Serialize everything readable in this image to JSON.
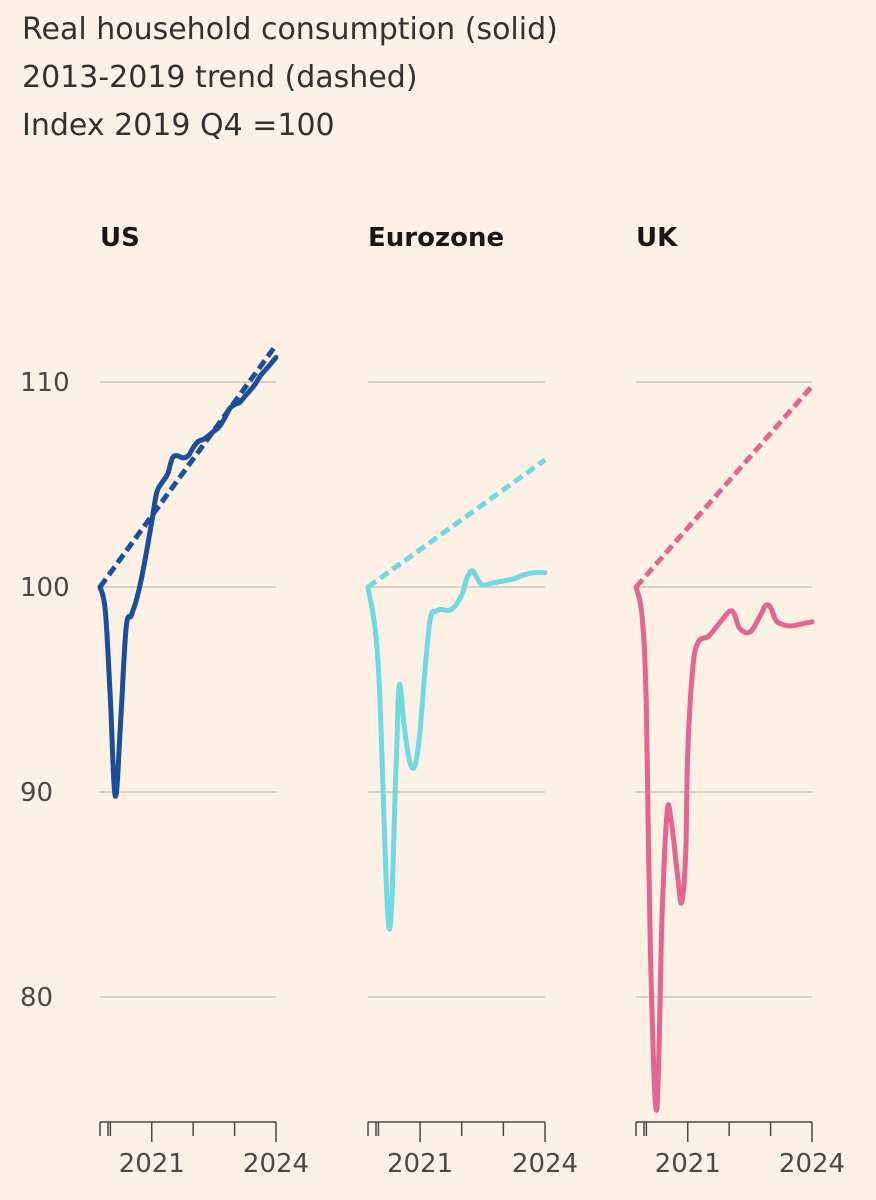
{
  "title_lines": [
    "Real household consumption (solid)",
    "2013-2019 trend (dashed)",
    "Index 2019 Q4 =100"
  ],
  "chart_data": [
    {
      "type": "line",
      "title": "US",
      "color": "#1b4f9b",
      "ylim": [
        74,
        113
      ],
      "yticks": [
        80,
        90,
        100,
        110
      ],
      "ytick_labels": [
        "80",
        "90",
        "100",
        "110"
      ],
      "xlim": [
        2019.75,
        2024.0
      ],
      "xtick_labels": [
        "2021",
        "2024"
      ],
      "xtick_label_positions": [
        2021.0,
        2024.0
      ],
      "series": [
        {
          "name": "Real household consumption",
          "style": "solid",
          "x": [
            2019.75,
            2019.88,
            2020.0,
            2020.12,
            2020.25,
            2020.38,
            2020.5,
            2020.62,
            2020.75,
            2020.88,
            2021.0,
            2021.12,
            2021.25,
            2021.38,
            2021.5,
            2021.62,
            2021.75,
            2021.88,
            2022.0,
            2022.12,
            2022.25,
            2022.38,
            2022.5,
            2022.62,
            2022.75,
            2022.88,
            2023.0,
            2023.12,
            2023.25,
            2023.38,
            2023.5,
            2023.62,
            2023.75,
            2023.88,
            2024.0
          ],
          "values": [
            100.0,
            98.8,
            94.5,
            89.8,
            93.5,
            98.0,
            98.6,
            99.3,
            100.4,
            101.8,
            103.2,
            104.6,
            105.1,
            105.5,
            106.3,
            106.4,
            106.3,
            106.4,
            106.8,
            107.1,
            107.2,
            107.4,
            107.6,
            107.8,
            108.2,
            108.7,
            108.9,
            109.0,
            109.3,
            109.6,
            109.9,
            110.3,
            110.6,
            110.9,
            111.2
          ]
        },
        {
          "name": "2013-2019 trend",
          "style": "dashed",
          "x": [
            2019.75,
            2024.0
          ],
          "values": [
            100.0,
            111.8
          ]
        }
      ]
    },
    {
      "type": "line",
      "title": "Eurozone",
      "color": "#72d8e2",
      "ylim": [
        74,
        113
      ],
      "yticks": [
        80,
        90,
        100,
        110
      ],
      "xlim": [
        2019.75,
        2024.0
      ],
      "xtick_labels": [
        "2021",
        "2024"
      ],
      "xtick_label_positions": [
        2021.0,
        2024.0
      ],
      "series": [
        {
          "name": "Real household consumption",
          "style": "solid",
          "x": [
            2019.75,
            2020.0,
            2020.25,
            2020.42,
            2020.5,
            2020.62,
            2020.75,
            2020.88,
            2021.0,
            2021.12,
            2021.25,
            2021.38,
            2021.5,
            2021.75,
            2022.0,
            2022.12,
            2022.25,
            2022.38,
            2022.5,
            2022.75,
            2023.0,
            2023.25,
            2023.5,
            2023.75,
            2024.0
          ],
          "values": [
            100.0,
            96.0,
            83.4,
            91.0,
            95.2,
            93.2,
            91.5,
            91.3,
            93.0,
            96.0,
            98.5,
            98.8,
            98.9,
            98.9,
            99.6,
            100.4,
            100.8,
            100.4,
            100.1,
            100.2,
            100.3,
            100.4,
            100.6,
            100.7,
            100.7
          ]
        },
        {
          "name": "2013-2019 trend",
          "style": "dashed",
          "x": [
            2019.75,
            2024.0
          ],
          "values": [
            100.0,
            106.2
          ]
        }
      ]
    },
    {
      "type": "line",
      "title": "UK",
      "color": "#e2668f",
      "ylim": [
        74,
        113
      ],
      "yticks": [
        80,
        90,
        100,
        110
      ],
      "xlim": [
        2019.75,
        2024.0
      ],
      "xtick_labels": [
        "2021",
        "2024"
      ],
      "xtick_label_positions": [
        2021.0,
        2024.0
      ],
      "series": [
        {
          "name": "Real household consumption",
          "style": "solid",
          "x": [
            2019.75,
            2019.9,
            2020.0,
            2020.1,
            2020.25,
            2020.38,
            2020.5,
            2020.6,
            2020.75,
            2020.85,
            2020.95,
            2021.0,
            2021.12,
            2021.25,
            2021.5,
            2021.75,
            2022.0,
            2022.12,
            2022.25,
            2022.5,
            2022.75,
            2022.88,
            2023.0,
            2023.12,
            2023.25,
            2023.5,
            2023.75,
            2024.0
          ],
          "values": [
            100.0,
            98.5,
            94.0,
            82.0,
            74.5,
            84.0,
            89.0,
            88.6,
            86.0,
            84.6,
            87.0,
            92.0,
            96.0,
            97.3,
            97.6,
            98.2,
            98.8,
            98.7,
            98.0,
            97.8,
            98.6,
            99.1,
            99.0,
            98.4,
            98.2,
            98.1,
            98.2,
            98.3
          ]
        },
        {
          "name": "2013-2019 trend",
          "style": "dashed",
          "x": [
            2019.75,
            2024.0
          ],
          "values": [
            100.0,
            109.8
          ]
        }
      ]
    }
  ]
}
